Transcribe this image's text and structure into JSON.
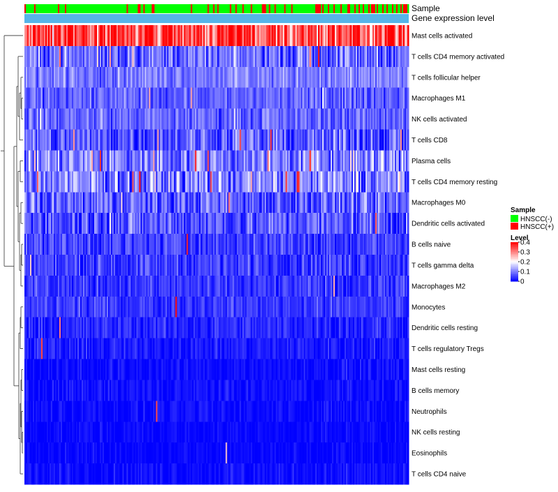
{
  "chart_data": {
    "type": "heatmap",
    "title": "",
    "annotation_tracks": [
      {
        "label": "Sample",
        "type": "categorical"
      },
      {
        "label": "Gene expression level",
        "type": "constant",
        "color": "#56B4E9"
      }
    ],
    "rows": [
      {
        "label": "Mast cells activated",
        "mean": 0.33,
        "spread": 0.09,
        "vivid_rate": 0.07
      },
      {
        "label": "T cells CD4 memory activated",
        "mean": 0.085,
        "spread": 0.06,
        "vivid_rate": 0.01
      },
      {
        "label": "T cells follicular helper",
        "mean": 0.1,
        "spread": 0.04,
        "vivid_rate": 0.005
      },
      {
        "label": "Macrophages M1",
        "mean": 0.075,
        "spread": 0.04,
        "vivid_rate": 0.005
      },
      {
        "label": "NK cells activated",
        "mean": 0.08,
        "spread": 0.04,
        "vivid_rate": 0.005
      },
      {
        "label": "T cells CD8",
        "mean": 0.07,
        "spread": 0.06,
        "vivid_rate": 0.01
      },
      {
        "label": "Plasma cells",
        "mean": 0.1,
        "spread": 0.07,
        "vivid_rate": 0.03
      },
      {
        "label": "T cells CD4 memory resting",
        "mean": 0.1,
        "spread": 0.07,
        "vivid_rate": 0.03
      },
      {
        "label": "Macrophages M0",
        "mean": 0.07,
        "spread": 0.06,
        "vivid_rate": 0.01
      },
      {
        "label": "Dendritic cells activated",
        "mean": 0.07,
        "spread": 0.06,
        "vivid_rate": 0.01
      },
      {
        "label": "B cells naive",
        "mean": 0.05,
        "spread": 0.04,
        "vivid_rate": 0.005
      },
      {
        "label": "T cells gamma delta",
        "mean": 0.05,
        "spread": 0.04,
        "vivid_rate": 0.005
      },
      {
        "label": "Macrophages M2",
        "mean": 0.04,
        "spread": 0.035,
        "vivid_rate": 0.003
      },
      {
        "label": "Monocytes",
        "mean": 0.045,
        "spread": 0.03,
        "vivid_rate": 0.002
      },
      {
        "label": "Dendritic cells resting",
        "mean": 0.03,
        "spread": 0.03,
        "vivid_rate": 0.002
      },
      {
        "label": "T cells regulatory  Tregs",
        "mean": 0.02,
        "spread": 0.025,
        "vivid_rate": 0.002
      },
      {
        "label": "Mast cells resting",
        "mean": 0.01,
        "spread": 0.02,
        "vivid_rate": 0.004
      },
      {
        "label": "B cells memory",
        "mean": 0.01,
        "spread": 0.02,
        "vivid_rate": 0.004
      },
      {
        "label": "Neutrophils",
        "mean": 0.008,
        "spread": 0.02,
        "vivid_rate": 0.004
      },
      {
        "label": "NK cells resting",
        "mean": 0.006,
        "spread": 0.015,
        "vivid_rate": 0.003
      },
      {
        "label": "Eosinophils",
        "mean": 0.005,
        "spread": 0.015,
        "vivid_rate": 0.003
      },
      {
        "label": "T cells CD4 naive",
        "mean": 0.01,
        "spread": 0.02,
        "vivid_rate": 0.008
      }
    ],
    "n_samples": 275,
    "sample_groups": {
      "negative_share_by_region": [
        0.94,
        0.9,
        0.86,
        0.6
      ],
      "positive_label": "HNSCC(+)",
      "negative_label": "HNSCC(-)"
    },
    "color_scale": {
      "min": 0,
      "max": 0.4,
      "low": "#0000FF",
      "mid": "#FFFFFF",
      "high": "#FF0000",
      "mid_value": 0.2
    },
    "legends": {
      "sample": {
        "title": "Sample",
        "entries": [
          {
            "label": "HNSCC(-)",
            "color": "#00FF00"
          },
          {
            "label": "HNSCC(+)",
            "color": "#FF0000"
          }
        ]
      },
      "level": {
        "title": "Level",
        "ticks": [
          {
            "value": 0.4,
            "label": "0.4"
          },
          {
            "value": 0.3,
            "label": "0.3"
          },
          {
            "value": 0.2,
            "label": "0.2"
          },
          {
            "value": 0.1,
            "label": "0.1"
          },
          {
            "value": 0,
            "label": "0"
          }
        ]
      }
    },
    "dendrogram": {
      "order": [
        "Mast cells activated",
        "T cells CD4 memory activated",
        "T cells follicular helper",
        "Macrophages M1",
        "NK cells activated",
        "T cells CD8",
        "Plasma cells",
        "T cells CD4 memory resting",
        "Macrophages M0",
        "Dendritic cells activated",
        "B cells naive",
        "T cells gamma delta",
        "Macrophages M2",
        "Monocytes",
        "Dendritic cells resting",
        "T cells regulatory  Tregs",
        "Mast cells resting",
        "B cells memory",
        "Neutrophils",
        "NK cells resting",
        "Eosinophils",
        "T cells CD4 naive"
      ]
    }
  }
}
